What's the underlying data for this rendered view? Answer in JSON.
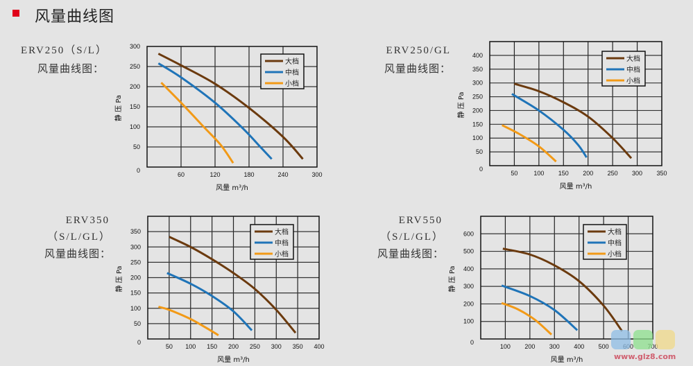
{
  "header": {
    "title": "风量曲线图",
    "bullet_color": "#e0001a"
  },
  "colors": {
    "high": "#6b3a0e",
    "mid": "#1f74b8",
    "low": "#f29a17",
    "grid": "#111111",
    "background": "#e4e4e4"
  },
  "models": [
    {
      "line1": "ERV250（S/L）",
      "line2": "风量曲线图："
    },
    {
      "line1": "ERV250/GL",
      "line2": "风量曲线图："
    },
    {
      "line1": "ERV350",
      "line2": "（S/L/GL）",
      "line3": "风量曲线图："
    },
    {
      "line1": "ERV550",
      "line2": "（S/L/GL）",
      "line3": "风量曲线图："
    }
  ],
  "watermark": {
    "text": "www.glz8.com",
    "chars": [
      "鬼",
      "老",
      "主",
      "吧"
    ]
  },
  "chart_data": [
    {
      "type": "line",
      "title": "ERV250（S/L）风量曲线图",
      "xlabel": "风量 m³/h",
      "ylabel": "静 压 Pa",
      "xlim": [
        0,
        300
      ],
      "ylim": [
        0,
        300
      ],
      "xticks": [
        60,
        120,
        180,
        240,
        300
      ],
      "yticks": [
        0,
        50,
        100,
        150,
        200,
        250,
        300
      ],
      "xgrid": [
        60,
        120,
        180,
        240
      ],
      "ygrid": [
        50,
        100,
        150,
        200,
        250
      ],
      "grid": true,
      "legend_position": "upper right",
      "series": [
        {
          "name": "大档",
          "color": "#6b3a0e",
          "x": [
            20,
            60,
            120,
            180,
            240,
            275
          ],
          "y": [
            282,
            253,
            207,
            147,
            75,
            20
          ]
        },
        {
          "name": "中档",
          "color": "#1f74b8",
          "x": [
            20,
            60,
            120,
            170,
            200,
            220
          ],
          "y": [
            258,
            223,
            160,
            95,
            50,
            20
          ]
        },
        {
          "name": "小档",
          "color": "#f29a17",
          "x": [
            25,
            60,
            100,
            130,
            152
          ],
          "y": [
            210,
            160,
            100,
            55,
            10
          ]
        }
      ]
    },
    {
      "type": "line",
      "title": "ERV250/GL 风量曲线图",
      "xlabel": "风量 m³/h",
      "ylabel": "静 压 Pa",
      "xlim": [
        0,
        350
      ],
      "ylim": [
        0,
        450
      ],
      "xticks": [
        50,
        100,
        150,
        200,
        250,
        300,
        350
      ],
      "yticks": [
        0,
        50,
        100,
        150,
        200,
        250,
        300,
        350,
        400
      ],
      "xgrid": [
        50,
        100,
        150,
        200,
        250,
        300
      ],
      "ygrid": [
        50,
        100,
        150,
        200,
        250,
        300,
        350,
        400
      ],
      "grid": true,
      "legend_position": "upper right",
      "series": [
        {
          "name": "大档",
          "color": "#6b3a0e",
          "x": [
            50,
            100,
            150,
            200,
            250,
            288
          ],
          "y": [
            297,
            270,
            230,
            178,
            100,
            27
          ]
        },
        {
          "name": "中档",
          "color": "#1f74b8",
          "x": [
            45,
            100,
            150,
            180,
            197
          ],
          "y": [
            260,
            200,
            130,
            75,
            30
          ]
        },
        {
          "name": "小档",
          "color": "#f29a17",
          "x": [
            25,
            60,
            100,
            135
          ],
          "y": [
            147,
            115,
            70,
            15
          ]
        }
      ]
    },
    {
      "type": "line",
      "title": "ERV350（S/L/GL）风量曲线图",
      "xlabel": "风量 m³/h",
      "ylabel": "静 压 Pa",
      "xlim": [
        0,
        400
      ],
      "ylim": [
        0,
        400
      ],
      "xticks": [
        50,
        100,
        150,
        200,
        250,
        300,
        350,
        400
      ],
      "yticks": [
        0,
        50,
        100,
        150,
        200,
        250,
        300,
        350
      ],
      "xgrid": [
        50,
        100,
        150,
        200,
        250,
        300,
        350
      ],
      "ygrid": [
        50,
        100,
        150,
        200,
        250,
        300,
        350
      ],
      "grid": true,
      "legend_position": "upper right",
      "series": [
        {
          "name": "大档",
          "color": "#6b3a0e",
          "x": [
            50,
            100,
            150,
            200,
            250,
            300,
            345
          ],
          "y": [
            333,
            300,
            260,
            215,
            163,
            95,
            20
          ]
        },
        {
          "name": "中档",
          "color": "#1f74b8",
          "x": [
            45,
            100,
            150,
            200,
            243
          ],
          "y": [
            215,
            180,
            140,
            90,
            28
          ]
        },
        {
          "name": "小档",
          "color": "#f29a17",
          "x": [
            25,
            50,
            100,
            150,
            165
          ],
          "y": [
            105,
            95,
            65,
            25,
            12
          ]
        }
      ]
    },
    {
      "type": "line",
      "title": "ERV550（S/L/GL）风量曲线图",
      "xlabel": "风量 m³/h",
      "ylabel": "静 压 Pa",
      "xlim": [
        0,
        700
      ],
      "ylim": [
        0,
        700
      ],
      "xticks": [
        100,
        200,
        300,
        400,
        500,
        600,
        700
      ],
      "yticks": [
        0,
        100,
        200,
        300,
        400,
        500,
        600
      ],
      "xgrid": [
        100,
        200,
        300,
        400,
        500,
        600
      ],
      "ygrid": [
        100,
        200,
        300,
        400,
        500,
        600
      ],
      "grid": true,
      "legend_position": "upper right",
      "series": [
        {
          "name": "大档",
          "color": "#6b3a0e",
          "x": [
            90,
            200,
            300,
            400,
            500,
            575
          ],
          "y": [
            515,
            482,
            420,
            330,
            190,
            45
          ]
        },
        {
          "name": "中档",
          "color": "#1f74b8",
          "x": [
            85,
            200,
            300,
            393
          ],
          "y": [
            305,
            245,
            165,
            50
          ]
        },
        {
          "name": "小档",
          "color": "#f29a17",
          "x": [
            85,
            150,
            220,
            288
          ],
          "y": [
            205,
            170,
            110,
            25
          ]
        }
      ]
    }
  ]
}
